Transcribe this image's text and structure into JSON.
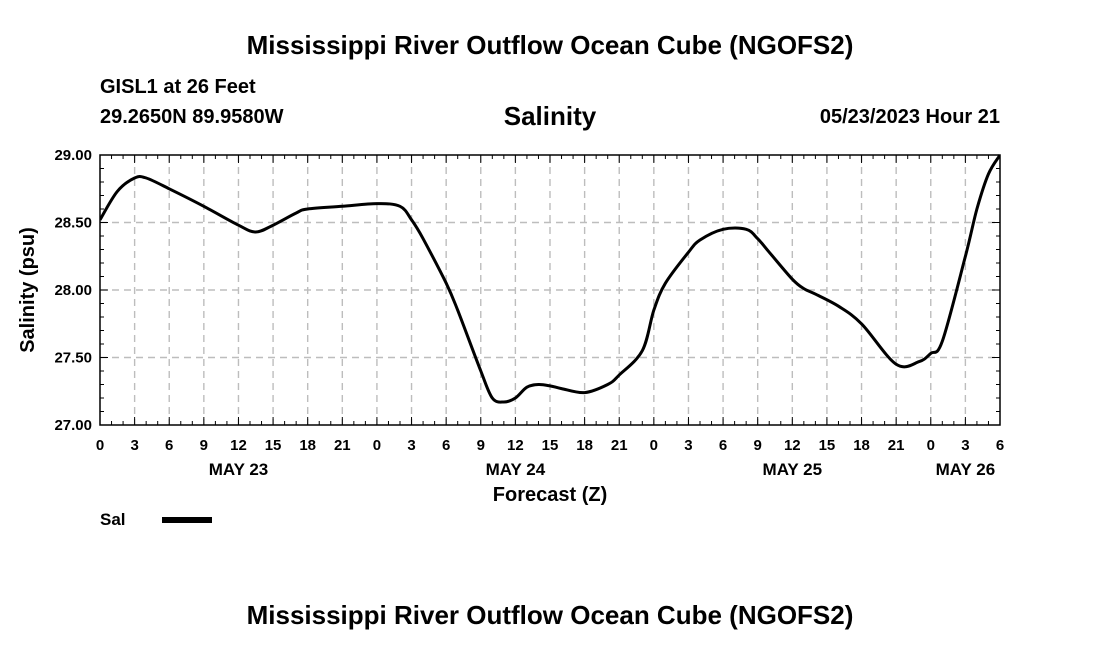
{
  "header": {
    "title": "Mississippi River Outflow Ocean Cube (NGOFS2)",
    "station": "GISL1 at 26 Feet",
    "coords": "29.2650N  89.9580W",
    "chart_title": "Salinity",
    "timestamp": "05/23/2023 Hour 21"
  },
  "footer": {
    "title": "Mississippi River Outflow Ocean Cube (NGOFS2)"
  },
  "legend": {
    "label": "Sal",
    "color": "#000000"
  },
  "chart_data": {
    "type": "line",
    "title": "Salinity",
    "xlabel": "Forecast (Z)",
    "ylabel": "Salinity (psu)",
    "xlim": [
      0,
      78
    ],
    "ylim": [
      27.0,
      29.0
    ],
    "grid": true,
    "x_tick_labels": [
      "0",
      "3",
      "6",
      "9",
      "12",
      "15",
      "18",
      "21",
      "0",
      "3",
      "6",
      "9",
      "12",
      "15",
      "18",
      "21",
      "0",
      "3",
      "6",
      "9",
      "12",
      "15",
      "18",
      "21",
      "0",
      "3",
      "6"
    ],
    "y_tick_labels": [
      "27.00",
      "27.50",
      "28.00",
      "28.50",
      "29.00"
    ],
    "y_ticks": [
      27.0,
      27.5,
      28.0,
      28.5,
      29.0
    ],
    "date_labels": [
      {
        "hour": 12,
        "label": "MAY 23"
      },
      {
        "hour": 36,
        "label": "MAY 24"
      },
      {
        "hour": 60,
        "label": "MAY 25"
      },
      {
        "hour": 75,
        "label": "MAY 26"
      }
    ],
    "series": [
      {
        "name": "Sal",
        "x": [
          0,
          1.5,
          3,
          4,
          6,
          9,
          12,
          13.5,
          15,
          17,
          18,
          21,
          24,
          26,
          27,
          28,
          30,
          31,
          33,
          34,
          35,
          36,
          37,
          38,
          39,
          40,
          42,
          44,
          45,
          47,
          48,
          49,
          51,
          52,
          54,
          56,
          57,
          58,
          60,
          61,
          62,
          64,
          66,
          69,
          71,
          72,
          73,
          75,
          76,
          77,
          78
        ],
        "values": [
          28.52,
          28.73,
          28.83,
          28.83,
          28.75,
          28.62,
          28.48,
          28.43,
          28.48,
          28.57,
          28.6,
          28.62,
          28.64,
          28.62,
          28.52,
          28.38,
          28.05,
          27.85,
          27.4,
          27.2,
          27.17,
          27.2,
          27.28,
          27.3,
          27.29,
          27.27,
          27.24,
          27.3,
          27.37,
          27.55,
          27.85,
          28.05,
          28.28,
          28.37,
          28.45,
          28.45,
          28.38,
          28.28,
          28.08,
          28.01,
          27.97,
          27.88,
          27.75,
          27.45,
          27.47,
          27.53,
          27.62,
          28.25,
          28.6,
          28.86,
          29.0
        ]
      }
    ]
  }
}
